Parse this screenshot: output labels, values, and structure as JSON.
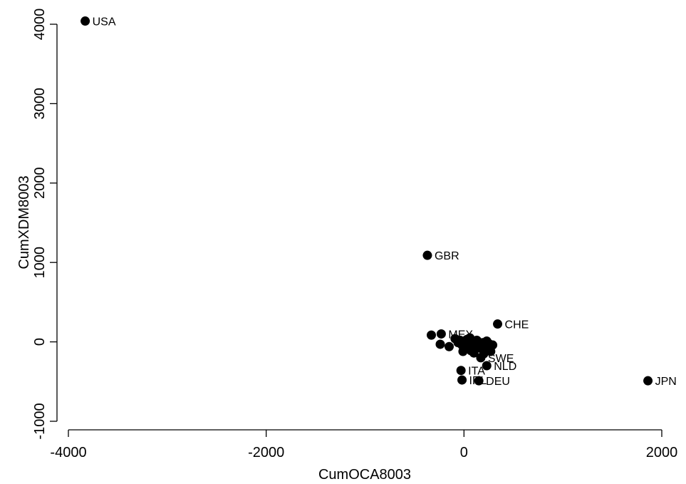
{
  "chart_data": {
    "type": "scatter",
    "title": "",
    "xlabel": "CumOCA8003",
    "ylabel": "CumXDM8003",
    "xlim": [
      -4000,
      2000
    ],
    "ylim": [
      -1000,
      4000
    ],
    "xticks": [
      -4000,
      -2000,
      0,
      2000
    ],
    "yticks": [
      -1000,
      0,
      1000,
      2000,
      3000,
      4000
    ],
    "grid": false,
    "legend": "none",
    "marker_color": "#000000",
    "points": [
      {
        "label": "USA",
        "x": -3830,
        "y": 4040
      },
      {
        "label": "GBR",
        "x": -370,
        "y": 1090
      },
      {
        "label": "CHE",
        "x": 340,
        "y": 225
      },
      {
        "label": "JPN",
        "x": 1860,
        "y": -490
      },
      {
        "label": "NLD",
        "x": 230,
        "y": -300
      },
      {
        "label": "ITA",
        "x": -30,
        "y": -360
      },
      {
        "label": "IRL",
        "x": -20,
        "y": -480
      },
      {
        "label": "DEU",
        "x": 150,
        "y": -490
      },
      {
        "label": "SWE",
        "x": 170,
        "y": -200
      },
      {
        "label": "MEX",
        "x": -230,
        "y": 100
      },
      {
        "label": "",
        "x": -330,
        "y": 85
      },
      {
        "label": "",
        "x": -240,
        "y": -30
      },
      {
        "label": "",
        "x": -150,
        "y": -60
      },
      {
        "label": "",
        "x": -90,
        "y": 40
      },
      {
        "label": "",
        "x": -60,
        "y": -10
      },
      {
        "label": "",
        "x": -40,
        "y": 20
      },
      {
        "label": "",
        "x": -20,
        "y": -40
      },
      {
        "label": "",
        "x": 0,
        "y": 10
      },
      {
        "label": "",
        "x": 10,
        "y": -90
      },
      {
        "label": "",
        "x": 30,
        "y": 30
      },
      {
        "label": "",
        "x": 50,
        "y": -20
      },
      {
        "label": "",
        "x": 70,
        "y": -110
      },
      {
        "label": "",
        "x": 90,
        "y": 0
      },
      {
        "label": "",
        "x": 110,
        "y": -60
      },
      {
        "label": "",
        "x": 130,
        "y": 20
      },
      {
        "label": "",
        "x": 150,
        "y": -30
      },
      {
        "label": "",
        "x": 170,
        "y": -80
      },
      {
        "label": "",
        "x": 190,
        "y": -10
      },
      {
        "label": "",
        "x": 210,
        "y": -50
      },
      {
        "label": "",
        "x": 230,
        "y": 10
      },
      {
        "label": "",
        "x": 250,
        "y": -20
      },
      {
        "label": "",
        "x": 270,
        "y": -120
      },
      {
        "label": "",
        "x": 290,
        "y": -40
      },
      {
        "label": "",
        "x": 60,
        "y": 50
      },
      {
        "label": "",
        "x": -10,
        "y": -120
      },
      {
        "label": "",
        "x": 100,
        "y": -140
      },
      {
        "label": "",
        "x": 200,
        "y": -150
      }
    ]
  }
}
